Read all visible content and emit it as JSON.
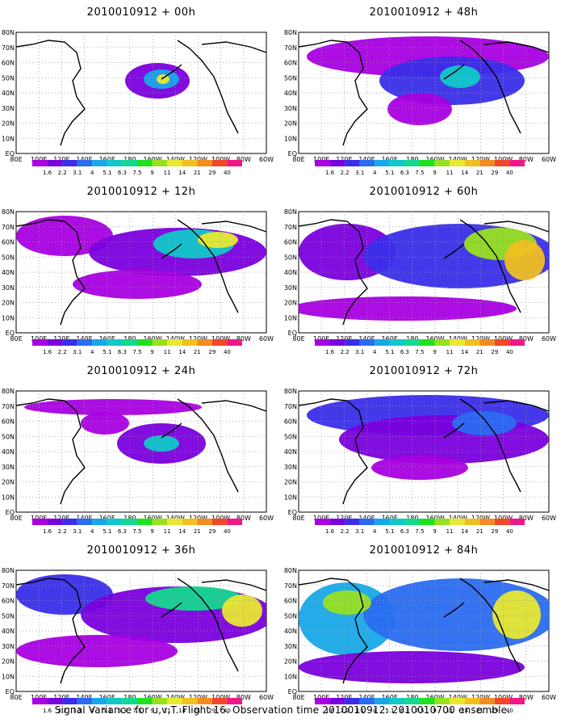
{
  "caption": "Signal Variance for u,v,T. Flight 16. Observation time 2010010912. 2010010700 ensemble.",
  "chart_data": {
    "type": "heatmap",
    "colorbar": {
      "levels": [
        "1.6",
        "2.2",
        "3.1",
        "4",
        "5.1",
        "6.3",
        "7.5",
        "9",
        "11",
        "14",
        "21",
        "29",
        "40"
      ],
      "colors": [
        "#a800e0",
        "#7a00dc",
        "#3a2ee8",
        "#2a6cf0",
        "#18a8e8",
        "#10c8c8",
        "#14d890",
        "#20e020",
        "#98e020",
        "#e8e830",
        "#f0c020",
        "#f08c20",
        "#f04828",
        "#f01888"
      ]
    },
    "lon_ticks": [
      "80E",
      "100E",
      "120E",
      "140E",
      "160E",
      "180",
      "160W",
      "140W",
      "120W",
      "100W",
      "80W",
      "60W"
    ],
    "lat_ticks": [
      "80N",
      "70N",
      "60N",
      "50N",
      "40N",
      "30N",
      "20N",
      "10N",
      "EQ"
    ],
    "panels": [
      {
        "title": "2010010912 + 00h",
        "level": 0
      },
      {
        "title": "2010010912 + 48h",
        "level": 4
      },
      {
        "title": "2010010912 + 12h",
        "level": 1
      },
      {
        "title": "2010010912 + 60h",
        "level": 5
      },
      {
        "title": "2010010912 + 24h",
        "level": 2
      },
      {
        "title": "2010010912 + 72h",
        "level": 6
      },
      {
        "title": "2010010912 + 36h",
        "level": 3
      },
      {
        "title": "2010010912 + 84h",
        "level": 7
      }
    ]
  }
}
